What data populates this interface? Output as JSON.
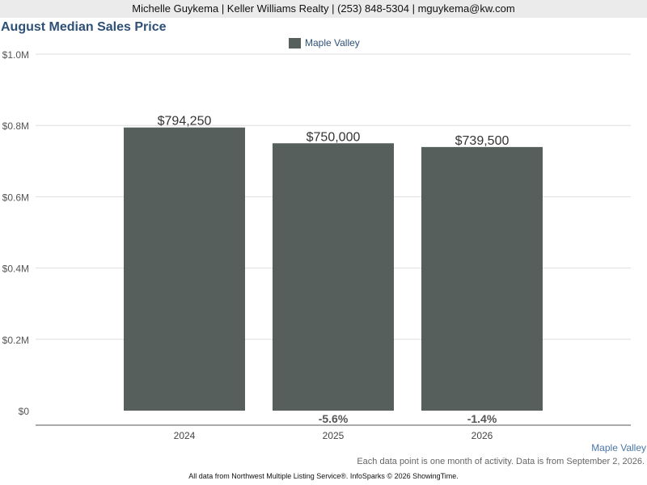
{
  "header": {
    "contact": "Michelle Guykema | Keller Williams Realty | (253) 848-5304 | mguykema@kw.com"
  },
  "footer": {
    "series_label": "Maple Valley",
    "note": "Each data point is one month of activity. Data is from September 2, 2026.",
    "attribution": "All data from Northwest Multiple Listing Service®. InfoSparks © 2026 ShowingTime."
  },
  "colors": {
    "bar": "#565f5c",
    "title": "#2e5077",
    "grid": "#dddddd"
  },
  "chart_data": {
    "type": "bar",
    "title": "August Median Sales Price",
    "xlabel": "",
    "ylabel": "",
    "categories": [
      "2024",
      "2025",
      "2026"
    ],
    "series": [
      {
        "name": "Maple Valley",
        "values": [
          794250,
          750000,
          739500
        ],
        "value_labels": [
          "$794,250",
          "$750,000",
          "$739,500"
        ],
        "change_labels": [
          "",
          "-5.6%",
          "-1.4%"
        ]
      }
    ],
    "ylim": [
      0,
      1000000
    ],
    "yticks": [
      0,
      200000,
      400000,
      600000,
      800000,
      1000000
    ],
    "ytick_labels": [
      "$0",
      "$0.2M",
      "$0.4M",
      "$0.6M",
      "$0.8M",
      "$1.0M"
    ],
    "grid": true,
    "legend_position": "top-center"
  }
}
